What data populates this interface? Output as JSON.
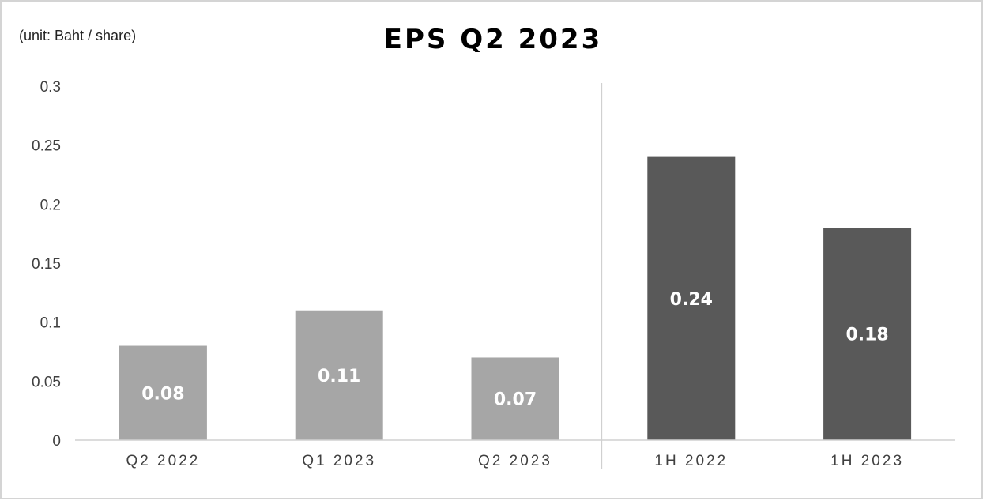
{
  "chart_data": {
    "type": "bar",
    "title": "EPS Q2 2023",
    "unit_label": "(unit: Baht / share)",
    "categories": [
      "Q2 2022",
      "Q1 2023",
      "Q2 2023",
      "1H 2022",
      "1H 2023"
    ],
    "values": [
      0.08,
      0.11,
      0.07,
      0.24,
      0.18
    ],
    "data_labels": [
      "0.08",
      "0.11",
      "0.07",
      "0.24",
      "0.18"
    ],
    "bar_colors": [
      "#a6a6a6",
      "#a6a6a6",
      "#a6a6a6",
      "#595959",
      "#595959"
    ],
    "ylim": [
      0,
      0.3
    ],
    "yticks": [
      0,
      0.05,
      0.1,
      0.15,
      0.2,
      0.25,
      0.3
    ],
    "ytick_labels": [
      "0",
      "0.05",
      "0.1",
      "0.15",
      "0.2",
      "0.25",
      "0.3"
    ],
    "separator_after_index": 2,
    "grid": false,
    "legend": "none"
  }
}
